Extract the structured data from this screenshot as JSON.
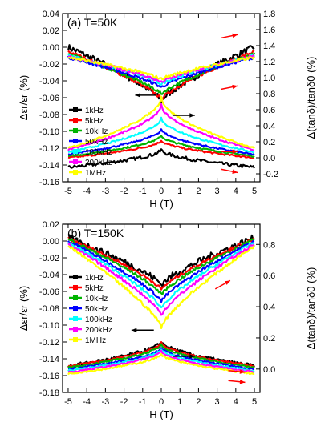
{
  "chart_data": [
    {
      "type": "line",
      "panel": "(a) T=50K",
      "xlabel": "H (T)",
      "ylabel_left": "Δεr/εr (%)",
      "ylabel_right": "Δ(tanδ)/tanδ0 (%)",
      "xlim": [
        -5.3,
        5.3
      ],
      "ylim_left": [
        -0.16,
        0.04
      ],
      "ylim_right": [
        -0.3,
        1.8
      ],
      "x_ticks": [
        -5,
        -4,
        -3,
        -2,
        -1,
        0,
        1,
        2,
        3,
        4,
        5
      ],
      "y_ticks_left": [
        -0.16,
        -0.14,
        -0.12,
        -0.1,
        -0.08,
        -0.06,
        -0.04,
        -0.02,
        0.0,
        0.02,
        0.04
      ],
      "y_ticks_right": [
        -0.2,
        0.0,
        0.2,
        0.4,
        0.6,
        0.8,
        1.0,
        1.2,
        1.4,
        1.6,
        1.8
      ],
      "x_tick_labels": [
        "-5",
        "-4",
        "-3",
        "-2",
        "-1",
        "0",
        "1",
        "2",
        "3",
        "4",
        "5"
      ],
      "y_tick_labels_left": [
        "-0.16",
        "-0.14",
        "-0.12",
        "-0.10",
        "-0.08",
        "-0.06",
        "-0.04",
        "-0.02",
        "0.00",
        "0.02",
        "0.04"
      ],
      "y_tick_labels_right": [
        "-0.2",
        "0.0",
        "0.2",
        "0.4",
        "0.6",
        "0.8",
        "1.0",
        "1.2",
        "1.4",
        "1.6",
        "1.8"
      ],
      "legend_position": "left",
      "grid": false,
      "series": [
        {
          "name": "1kHz",
          "color": "#000000",
          "diel_edge": 0.0,
          "diel_min": -0.064,
          "loss_edge": -0.12,
          "loss_peak": 0.1
        },
        {
          "name": "5kHz",
          "color": "#ff0000",
          "diel_edge": -0.005,
          "diel_min": -0.062,
          "loss_edge": 0.0,
          "loss_peak": 0.22
        },
        {
          "name": "10kHz",
          "color": "#00b400",
          "diel_edge": -0.008,
          "diel_min": -0.056,
          "loss_edge": 0.02,
          "loss_peak": 0.28
        },
        {
          "name": "50kHz",
          "color": "#0000ff",
          "diel_edge": -0.012,
          "diel_min": -0.048,
          "loss_edge": 0.04,
          "loss_peak": 0.36
        },
        {
          "name": "100kHz",
          "color": "#00ffff",
          "diel_edge": -0.01,
          "diel_min": -0.044,
          "loss_edge": 0.07,
          "loss_peak": 0.5
        },
        {
          "name": "200kHz",
          "color": "#ff00ff",
          "diel_edge": -0.011,
          "diel_min": -0.042,
          "loss_edge": 0.1,
          "loss_peak": 0.66
        },
        {
          "name": "1MHz",
          "color": "#ffff00",
          "diel_edge": -0.012,
          "diel_min": -0.038,
          "loss_edge": 0.12,
          "loss_peak": 0.76
        }
      ],
      "annotation_colors": {
        "arrow": "#000000",
        "sweep_arrow": "#ff0000"
      }
    },
    {
      "type": "line",
      "panel": "(b) T=150K",
      "xlabel": "H (T)",
      "ylabel_left": "Δεr/εr (%)",
      "ylabel_right": "Δ(tanδ)/tanδ0 (%)",
      "xlim": [
        -5.3,
        5.3
      ],
      "ylim_left": [
        -0.18,
        0.02
      ],
      "ylim_right": [
        -0.15,
        0.93
      ],
      "x_ticks": [
        -5,
        -4,
        -3,
        -2,
        -1,
        0,
        1,
        2,
        3,
        4,
        5
      ],
      "y_ticks_left": [
        -0.18,
        -0.16,
        -0.14,
        -0.12,
        -0.1,
        -0.08,
        -0.06,
        -0.04,
        -0.02,
        0.0,
        0.02
      ],
      "y_ticks_right": [
        0.0,
        0.2,
        0.4,
        0.6,
        0.8
      ],
      "x_tick_labels": [
        "-5",
        "-4",
        "-3",
        "-2",
        "-1",
        "0",
        "1",
        "2",
        "3",
        "4",
        "5"
      ],
      "y_tick_labels_left": [
        "-0.18",
        "-0.16",
        "-0.14",
        "-0.12",
        "-0.10",
        "-0.08",
        "-0.06",
        "-0.04",
        "-0.02",
        "0.00",
        "0.02"
      ],
      "y_tick_labels_right": [
        "0.0",
        "0.2",
        "0.4",
        "0.6",
        "0.8"
      ],
      "legend_position": "left",
      "grid": false,
      "series": [
        {
          "name": "1kHz",
          "color": "#000000",
          "diel_edge": 0.004,
          "diel_min": -0.052,
          "loss_edge": 0.02,
          "loss_peak": 0.18
        },
        {
          "name": "5kHz",
          "color": "#ff0000",
          "diel_edge": 0.003,
          "diel_min": -0.058,
          "loss_edge": 0.02,
          "loss_peak": 0.17
        },
        {
          "name": "10kHz",
          "color": "#00b400",
          "diel_edge": 0.002,
          "diel_min": -0.064,
          "loss_edge": 0.01,
          "loss_peak": 0.16
        },
        {
          "name": "50kHz",
          "color": "#0000ff",
          "diel_edge": 0.0,
          "diel_min": -0.072,
          "loss_edge": 0.0,
          "loss_peak": 0.14
        },
        {
          "name": "100kHz",
          "color": "#00ffff",
          "diel_edge": -0.002,
          "diel_min": -0.08,
          "loss_edge": -0.01,
          "loss_peak": 0.13
        },
        {
          "name": "200kHz",
          "color": "#ff00ff",
          "diel_edge": -0.004,
          "diel_min": -0.088,
          "loss_edge": -0.02,
          "loss_peak": 0.12
        },
        {
          "name": "1MHz",
          "color": "#ffff00",
          "diel_edge": -0.006,
          "diel_min": -0.102,
          "loss_edge": -0.03,
          "loss_peak": 0.1
        }
      ],
      "annotation_colors": {
        "arrow": "#000000",
        "sweep_arrow": "#ff0000"
      }
    }
  ]
}
